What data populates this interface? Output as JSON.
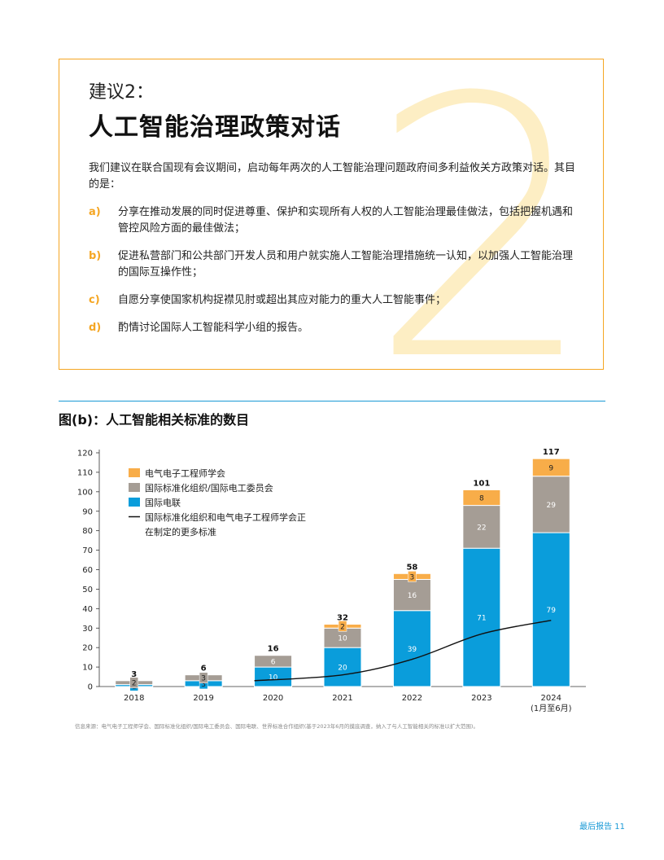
{
  "recommendation": {
    "label": "建议2：",
    "number_watermark": "2",
    "title": "人工智能治理政策对话",
    "intro": "我们建议在联合国现有会议期间，启动每年两次的人工智能治理问题政府间多利益攸关方政策对话。其目的是：",
    "items": [
      {
        "letter": "a)",
        "text": "分享在推动发展的同时促进尊重、保护和实现所有人权的人工智能治理最佳做法，包括把握机遇和管控风险方面的最佳做法；"
      },
      {
        "letter": "b)",
        "text": "促进私营部门和公共部门开发人员和用户就实施人工智能治理措施统一认知，以加强人工智能治理的国际互操作性；"
      },
      {
        "letter": "c)",
        "text": "自愿分享使国家机构捉襟见肘或超出其应对能力的重大人工智能事件；"
      },
      {
        "letter": "d)",
        "text": "酌情讨论国际人工智能科学小组的报告。"
      }
    ]
  },
  "figure": {
    "title": "图(b)：人工智能相关标准的数目",
    "source": "信息来源：电气电子工程师学会、国际标准化组织/国际电工委员会、国际电联、世界标准合作组织(基于2023年6月的摸底调查，纳入了与人工智能相关的标准以扩大范围)。"
  },
  "chart_data": {
    "type": "bar",
    "stacked": true,
    "title": "图(b)：人工智能相关标准的数目",
    "categories": [
      "2018",
      "2019",
      "2020",
      "2021",
      "2022",
      "2023",
      "2024"
    ],
    "category_sublabels": [
      "",
      "",
      "",
      "",
      "",
      "",
      "(1月至6月)"
    ],
    "ylim": [
      0,
      120
    ],
    "yticks": [
      0,
      10,
      20,
      30,
      40,
      50,
      60,
      70,
      80,
      90,
      100,
      110,
      120
    ],
    "series": [
      {
        "name": "国际电联",
        "color": "#0a9ddb",
        "values": [
          1,
          3,
          10,
          20,
          39,
          71,
          79
        ]
      },
      {
        "name": "国际标准化组织/国际电工委员会",
        "color": "#a59d95",
        "values": [
          2,
          3,
          6,
          10,
          16,
          22,
          29
        ]
      },
      {
        "name": "电气电子工程师学会",
        "color": "#f8ad49",
        "values": [
          0,
          0,
          0,
          2,
          3,
          8,
          9
        ]
      }
    ],
    "totals": [
      3,
      6,
      16,
      32,
      58,
      101,
      117
    ],
    "line": {
      "name": "国际标准化组织和电气电子工程师学会正在制定的更多标准",
      "color": "#111111",
      "x_start_category": "2020",
      "values": [
        3,
        6,
        14,
        27,
        34
      ]
    },
    "legend": {
      "placement": "top-left",
      "entries": [
        {
          "label": "电气电子工程师学会",
          "color": "#f8ad49",
          "kind": "box"
        },
        {
          "label": "国际标准化组织/国际电工委员会",
          "color": "#a59d95",
          "kind": "box"
        },
        {
          "label": "国际电联",
          "color": "#0a9ddb",
          "kind": "box"
        },
        {
          "label": "国际标准化组织和电气电子工程师学会正在制定的更多标准",
          "color": "#111111",
          "kind": "line"
        }
      ]
    }
  },
  "footer": {
    "text": "最后报告 11"
  }
}
